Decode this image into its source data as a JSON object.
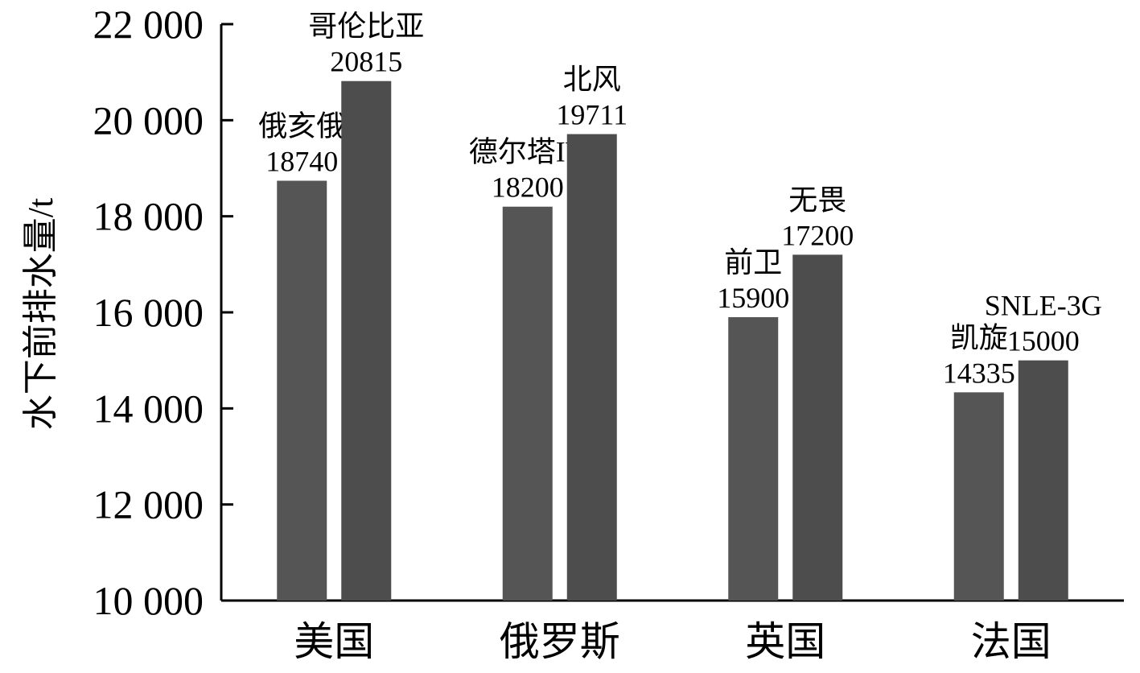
{
  "chart_data": {
    "type": "bar",
    "y_label": "水下前排水量/t",
    "categories": [
      "美国",
      "俄罗斯",
      "英国",
      "法国"
    ],
    "series": [
      {
        "color": "#555555",
        "values": [
          18740,
          18200,
          15900,
          14335
        ],
        "bar_names": [
          "俄亥俄",
          "德尔塔IV",
          "前卫",
          "凯旋"
        ]
      },
      {
        "color": "#4d4d4d",
        "values": [
          20815,
          19711,
          17200,
          15000
        ],
        "bar_names": [
          "哥伦比亚",
          "北风",
          "无畏",
          "SNLE-3G"
        ]
      }
    ],
    "ylim": [
      10000,
      22000
    ],
    "yticks": [
      {
        "value": 10000,
        "label": "10 000"
      },
      {
        "value": 12000,
        "label": "12 000"
      },
      {
        "value": 14000,
        "label": "14 000"
      },
      {
        "value": 16000,
        "label": "16 000"
      },
      {
        "value": 18000,
        "label": "18 000"
      },
      {
        "value": 20000,
        "label": "20 000"
      },
      {
        "value": 22000,
        "label": "22 000"
      }
    ],
    "grid": false
  }
}
